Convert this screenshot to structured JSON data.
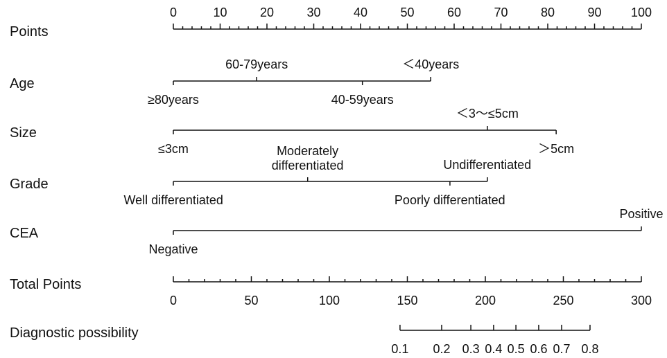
{
  "chart_data": {
    "type": "nomogram",
    "points_axis": {
      "name": "Points",
      "lim": [
        0,
        100
      ],
      "ticks": [
        0,
        10,
        20,
        30,
        40,
        50,
        60,
        70,
        80,
        90,
        100
      ],
      "minor_ticks": [
        2,
        4,
        6,
        8,
        12,
        14,
        16,
        18,
        22,
        24,
        26,
        28,
        32,
        34,
        36,
        38,
        42,
        44,
        46,
        48,
        52,
        54,
        56,
        58,
        62,
        64,
        66,
        68,
        72,
        74,
        76,
        78,
        82,
        84,
        86,
        88,
        92,
        94,
        96,
        98
      ]
    },
    "variables": [
      {
        "name": "Age",
        "levels": [
          {
            "label": "≥80years",
            "points": 0
          },
          {
            "label": "60-79years",
            "points": 17.8
          },
          {
            "label": "40-59years",
            "points": 40.4
          },
          {
            "label": "＜40years",
            "points": 55
          }
        ]
      },
      {
        "name": "Size",
        "levels": [
          {
            "label": "≤3cm",
            "points": 0
          },
          {
            "label": "＜3～≤5cm",
            "points": 67.1
          },
          {
            "label": "＞5cm",
            "points": 81.8
          }
        ]
      },
      {
        "name": "Grade",
        "levels": [
          {
            "label": "Well differentiated",
            "points": 0
          },
          {
            "label": "Moderately\ndifferentiated",
            "points": 28.7
          },
          {
            "label": "Poorly differentiated",
            "points": 59.1
          },
          {
            "label": "Undifferentiated",
            "points": 67.1
          }
        ]
      },
      {
        "name": "CEA",
        "levels": [
          {
            "label": "Negative",
            "points": 0
          },
          {
            "label": "Positive",
            "points": 100
          }
        ]
      }
    ],
    "total_axis": {
      "name": "Total Points",
      "lim": [
        0,
        300
      ],
      "ticks": [
        0,
        50,
        100,
        150,
        200,
        250,
        300
      ],
      "minor_ticks": [
        10,
        20,
        30,
        40,
        60,
        70,
        80,
        90,
        110,
        120,
        130,
        140,
        160,
        170,
        180,
        190,
        210,
        220,
        230,
        240,
        260,
        270,
        280,
        290
      ]
    },
    "probability_axis": {
      "name": "Diagnostic possibility",
      "ticks": [
        {
          "value": 0.1,
          "points": 145.3
        },
        {
          "value": 0.2,
          "points": 172
        },
        {
          "value": 0.3,
          "points": 190.7
        },
        {
          "value": 0.4,
          "points": 205.3
        },
        {
          "value": 0.5,
          "points": 219.6
        },
        {
          "value": 0.6,
          "points": 234.2
        },
        {
          "value": 0.7,
          "points": 248.9
        },
        {
          "value": 0.8,
          "points": 267.1
        }
      ]
    }
  }
}
